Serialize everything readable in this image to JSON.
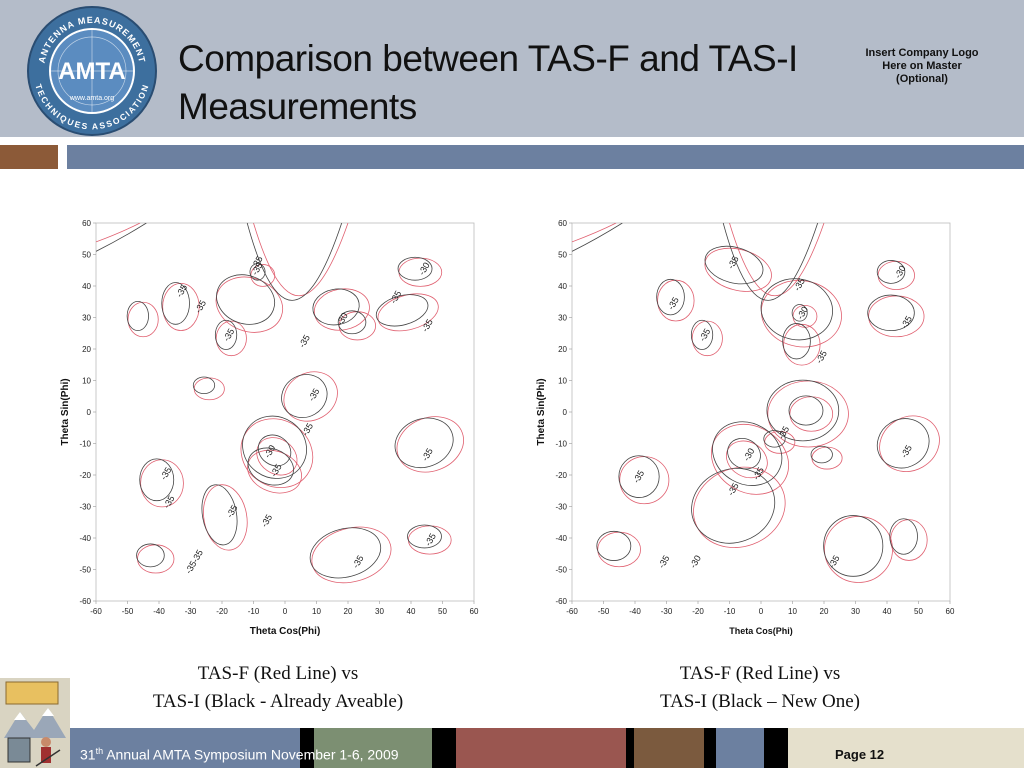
{
  "slide": {
    "title": "Comparison between TAS-F and TAS-I Measurements",
    "corner_note": "Insert Company Logo Here on Master (Optional)",
    "footer_left": "31th Annual AMTA Symposium November 1-6, 2009",
    "footer_ordinal": "31",
    "footer_ordinal_sup": "th",
    "footer_rest": " Annual AMTA Symposium November 1-6, 2009",
    "page_number": "Page 12"
  },
  "logo": {
    "top_arc": "ANTENNA MEASUREMENT",
    "bottom_arc": "TECHNIQUES ASSOCIATION",
    "center": "AMTA",
    "url": "www.amta.org"
  },
  "captions": {
    "left_line1": "TAS-F (Red Line) vs",
    "left_line2": "TAS-I (Black - Already Aveable)",
    "right_line1": "TAS-F (Red Line) vs",
    "right_line2": "TAS-I (Black – New One)"
  },
  "chart_data": [
    {
      "type": "contour",
      "xlabel": "Theta Cos(Phi)",
      "ylabel": "Theta Sin(Phi)",
      "xlim": [
        -60,
        60
      ],
      "ylim": [
        -60,
        60
      ],
      "x_ticks": [
        "-60",
        "-50",
        "-40",
        "-30",
        "-20",
        "-10",
        "0",
        "10",
        "20",
        "30",
        "40",
        "50",
        "60"
      ],
      "y_ticks": [
        "60",
        "50",
        "40",
        "30",
        "20",
        "10",
        "0",
        "-10",
        "-20",
        "-30",
        "-40",
        "-50",
        "-60"
      ],
      "series": [
        {
          "name": "TAS-F (Red Line)",
          "color": "#e06070"
        },
        {
          "name": "TAS-I (Black)",
          "color": "#444444"
        }
      ],
      "contour_labels": [
        {
          "text": "-35",
          "x": -8,
          "y": 45
        },
        {
          "text": "-35",
          "x": -8,
          "y": 47
        },
        {
          "text": "-30",
          "x": 45,
          "y": 45
        },
        {
          "text": "-35",
          "x": -32,
          "y": 38
        },
        {
          "text": "-35",
          "x": -26,
          "y": 33
        },
        {
          "text": "-35",
          "x": 36,
          "y": 36
        },
        {
          "text": "-35",
          "x": 46,
          "y": 27
        },
        {
          "text": "-30",
          "x": 19,
          "y": 29
        },
        {
          "text": "-35",
          "x": -17,
          "y": 24
        },
        {
          "text": "-35",
          "x": 7,
          "y": 22
        },
        {
          "text": "-35",
          "x": 10,
          "y": 5
        },
        {
          "text": "-35",
          "x": 8,
          "y": -6
        },
        {
          "text": "-30",
          "x": -4,
          "y": -13
        },
        {
          "text": "-35",
          "x": -2,
          "y": -19
        },
        {
          "text": "-35",
          "x": 46,
          "y": -14
        },
        {
          "text": "-35",
          "x": -37,
          "y": -20
        },
        {
          "text": "-35",
          "x": -36,
          "y": -29
        },
        {
          "text": "-35",
          "x": -16,
          "y": -32
        },
        {
          "text": "-35",
          "x": -5,
          "y": -35
        },
        {
          "text": "-35",
          "x": 47,
          "y": -41
        },
        {
          "text": "-35",
          "x": 24,
          "y": -48
        },
        {
          "text": "-35-35",
          "x": -28,
          "y": -48
        }
      ]
    },
    {
      "type": "contour",
      "xlabel": "Theta Cos(Phi)",
      "ylabel": "Theta Sin(Phi)",
      "xlim": [
        -60,
        60
      ],
      "ylim": [
        -60,
        60
      ],
      "x_ticks": [
        "-60",
        "-50",
        "-40",
        "-30",
        "-20",
        "-10",
        "0",
        "10",
        "20",
        "30",
        "40",
        "50",
        "60"
      ],
      "y_ticks": [
        "60",
        "50",
        "40",
        "30",
        "20",
        "10",
        "0",
        "-10",
        "-20",
        "-30",
        "-40",
        "-50",
        "-60"
      ],
      "series": [
        {
          "name": "TAS-F (Red Line)",
          "color": "#e06070"
        },
        {
          "name": "TAS-I (Black)",
          "color": "#444444"
        }
      ],
      "contour_labels": [
        {
          "text": "-35",
          "x": -8,
          "y": 47
        },
        {
          "text": "-30",
          "x": 45,
          "y": 44
        },
        {
          "text": "-35",
          "x": 13,
          "y": 40
        },
        {
          "text": "-35",
          "x": -27,
          "y": 34
        },
        {
          "text": "-30",
          "x": 14,
          "y": 31
        },
        {
          "text": "-35",
          "x": 47,
          "y": 28
        },
        {
          "text": "-35",
          "x": -17,
          "y": 24
        },
        {
          "text": "-35",
          "x": 20,
          "y": 17
        },
        {
          "text": "-35",
          "x": 8,
          "y": -7
        },
        {
          "text": "-35",
          "x": 47,
          "y": -13
        },
        {
          "text": "-30",
          "x": -3,
          "y": -14
        },
        {
          "text": "-35",
          "x": 0,
          "y": -20
        },
        {
          "text": "-35",
          "x": -38,
          "y": -21
        },
        {
          "text": "-35",
          "x": -8,
          "y": -25
        },
        {
          "text": "-35",
          "x": -30,
          "y": -48
        },
        {
          "text": "-30",
          "x": -20,
          "y": -48
        },
        {
          "text": "-35",
          "x": 24,
          "y": -48
        }
      ]
    }
  ]
}
